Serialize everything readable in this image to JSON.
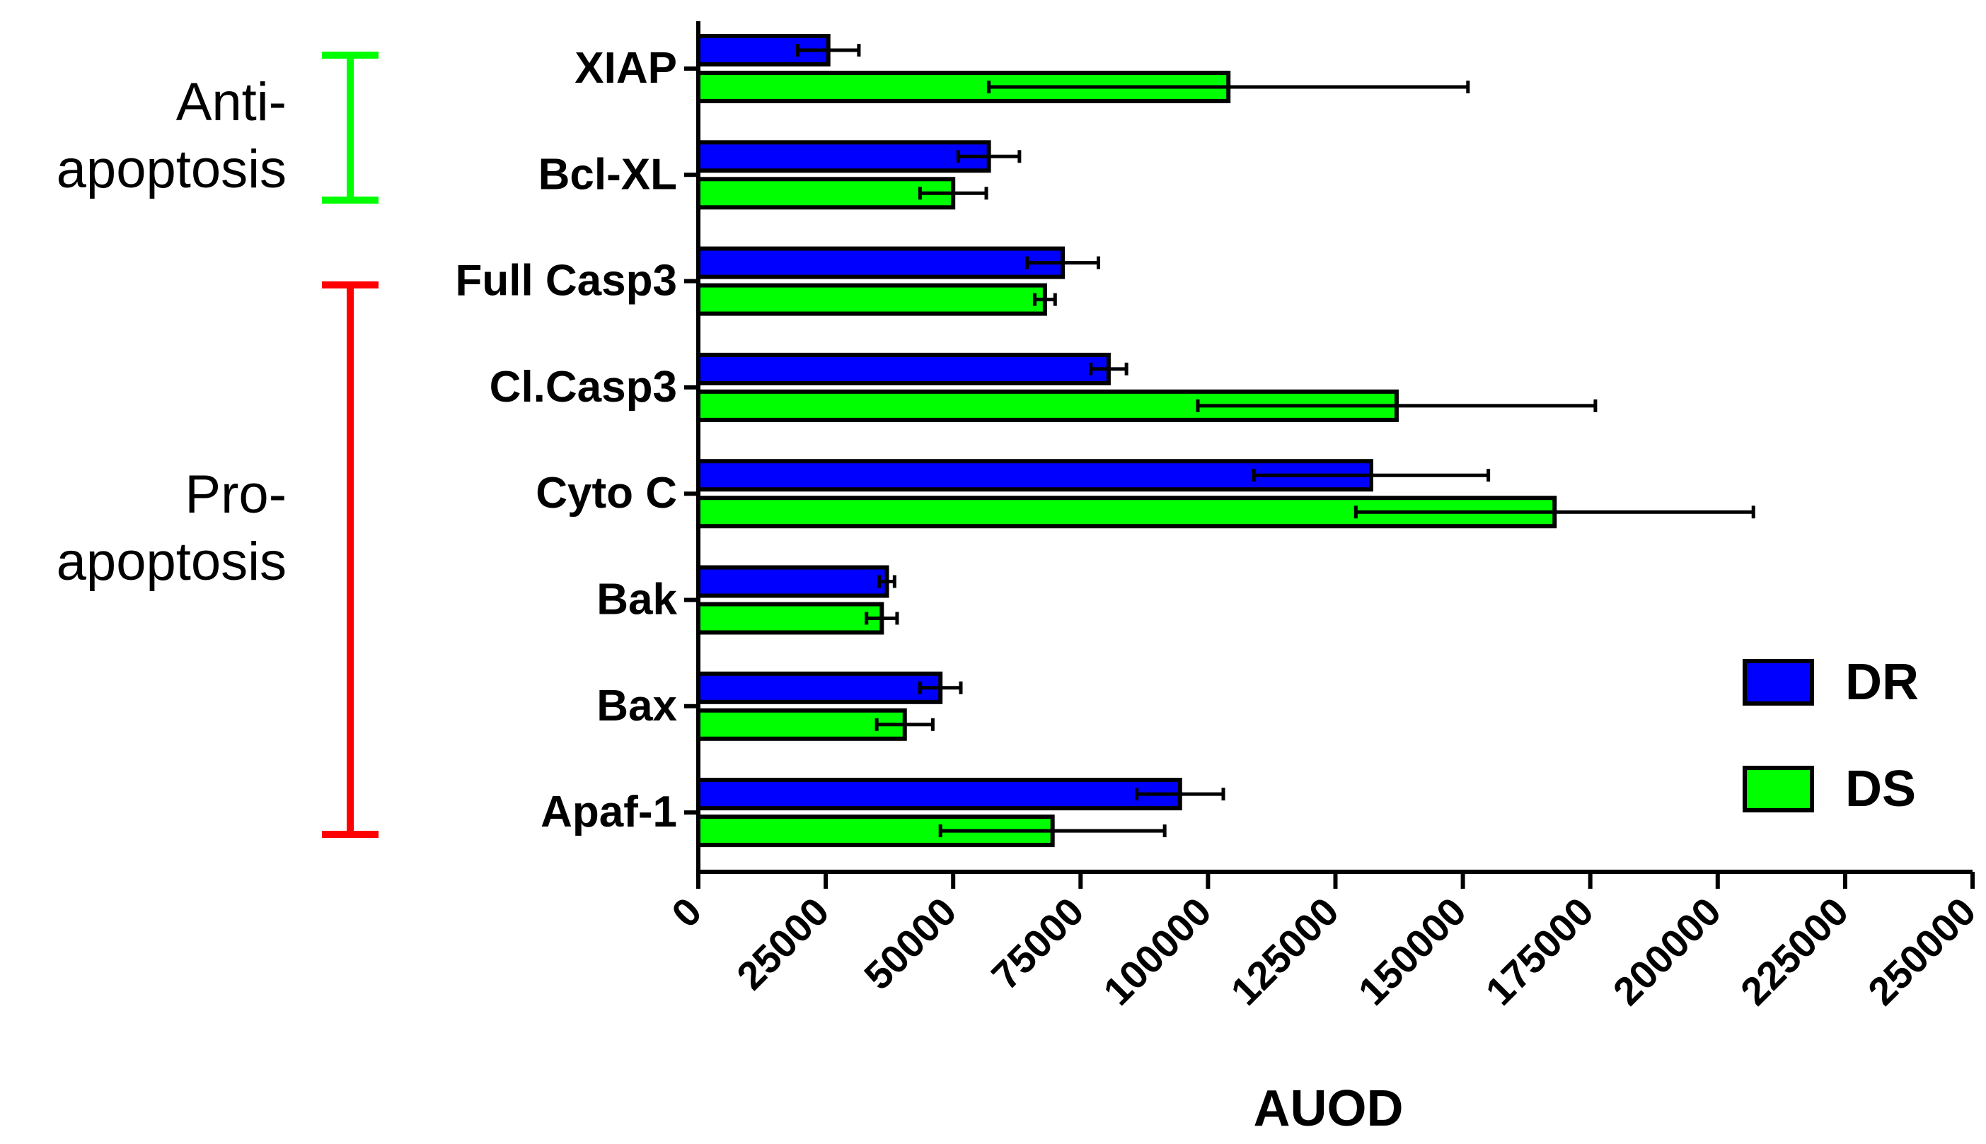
{
  "chart_data": {
    "type": "bar",
    "orientation": "horizontal",
    "xlabel": "AUOD",
    "xlim": [
      0,
      250000
    ],
    "xticks": [
      0,
      25000,
      50000,
      75000,
      100000,
      125000,
      150000,
      175000,
      200000,
      225000,
      250000
    ],
    "xtick_labels": [
      "0",
      "25000",
      "50000",
      "75000",
      "100000",
      "125000",
      "150000",
      "175000",
      "200000",
      "225000",
      "250000"
    ],
    "categories": [
      "XIAP",
      "Bcl-XL",
      "Full Casp3",
      "Cl.Casp3",
      "Cyto C",
      "Bak",
      "Bax",
      "Apaf-1"
    ],
    "series": [
      {
        "name": "DR",
        "color": "#0000ff",
        "values": [
          25500,
          57000,
          71500,
          80500,
          132000,
          37000,
          47500,
          94500
        ],
        "errors": [
          6000,
          6000,
          7000,
          3500,
          23000,
          1500,
          4000,
          8500
        ]
      },
      {
        "name": "DS",
        "color": "#00ff00",
        "values": [
          104000,
          50000,
          68000,
          137000,
          168000,
          36000,
          40500,
          69500
        ],
        "errors": [
          47000,
          6500,
          2000,
          39000,
          39000,
          3000,
          5500,
          22000
        ]
      }
    ],
    "legend": {
      "position": "bottom-right",
      "entries": [
        "DR",
        "DS"
      ]
    },
    "group_annotations": [
      {
        "label_line1": "Anti-",
        "label_line2": "apoptosis",
        "color": "#00ff00",
        "categories": [
          "XIAP",
          "Bcl-XL"
        ]
      },
      {
        "label_line1": "Pro-",
        "label_line2": "apoptosis",
        "color": "#ff0000",
        "categories": [
          "Full Casp3",
          "Cl.Casp3",
          "Cyto C",
          "Bak",
          "Bax",
          "Apaf-1"
        ]
      }
    ],
    "grid": false
  }
}
